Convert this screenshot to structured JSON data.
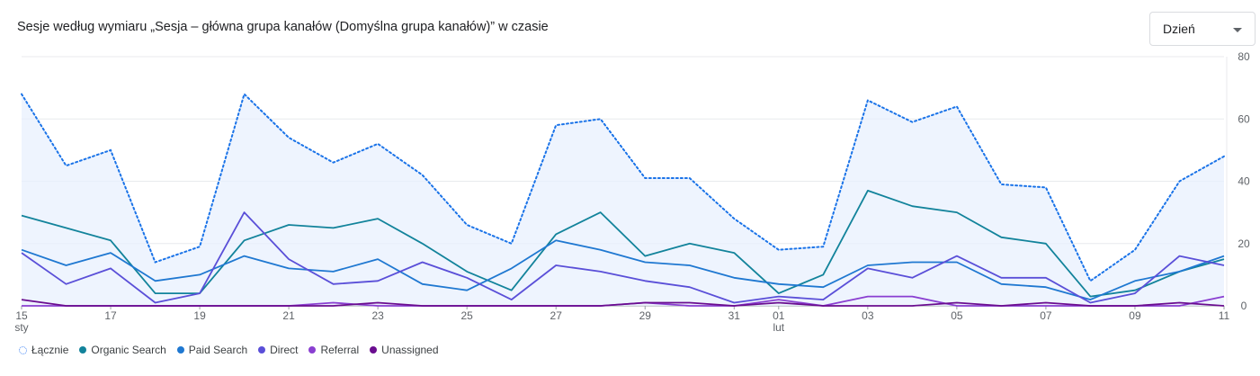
{
  "header": {
    "title": "Sesje według wymiaru „Sesja – główna grupa kanałów (Domyślna grupa kanałów)” w czasie",
    "period_select": "Dzień"
  },
  "chart_data": {
    "type": "line",
    "x": [
      "15 sty",
      "16 sty",
      "17 sty",
      "18 sty",
      "19 sty",
      "20 sty",
      "21 sty",
      "22 sty",
      "23 sty",
      "24 sty",
      "25 sty",
      "26 sty",
      "27 sty",
      "28 sty",
      "29 sty",
      "30 sty",
      "31 sty",
      "01 lut",
      "02 lut",
      "03 lut",
      "04 lut",
      "05 lut",
      "06 lut",
      "07 lut",
      "08 lut",
      "09 lut",
      "10 lut",
      "11 lut"
    ],
    "x_tick_labels": [
      "15",
      "17",
      "19",
      "21",
      "23",
      "25",
      "27",
      "29",
      "31",
      "01",
      "03",
      "05",
      "07",
      "09",
      "11"
    ],
    "x_month_labels": [
      {
        "at": "15",
        "label": "sty"
      },
      {
        "at": "01",
        "label": "lut"
      }
    ],
    "ylim": [
      0,
      80
    ],
    "y_ticks": [
      0,
      20,
      40,
      60,
      80
    ],
    "y_axis_side": "right",
    "grid": true,
    "legend_position": "bottom-left",
    "series": [
      {
        "name": "Łącznie",
        "style": "dotted-area",
        "color": "#1a73e8",
        "values": [
          68,
          45,
          50,
          14,
          19,
          68,
          54,
          46,
          52,
          42,
          26,
          20,
          58,
          60,
          41,
          41,
          28,
          18,
          19,
          66,
          59,
          64,
          39,
          38,
          8,
          18,
          40,
          48
        ]
      },
      {
        "name": "Organic Search",
        "color": "#12839b",
        "values": [
          29,
          25,
          21,
          4,
          4,
          21,
          26,
          25,
          28,
          20,
          11,
          5,
          23,
          30,
          16,
          20,
          17,
          4,
          10,
          37,
          32,
          30,
          22,
          20,
          3,
          5,
          11,
          15
        ]
      },
      {
        "name": "Paid Search",
        "color": "#1f78d1",
        "values": [
          18,
          13,
          17,
          8,
          10,
          16,
          12,
          11,
          15,
          7,
          5,
          12,
          21,
          18,
          14,
          13,
          9,
          7,
          6,
          13,
          14,
          14,
          7,
          6,
          2,
          8,
          11,
          16
        ]
      },
      {
        "name": "Direct",
        "color": "#5a4fd8",
        "values": [
          17,
          7,
          12,
          1,
          4,
          30,
          15,
          7,
          8,
          14,
          9,
          2,
          13,
          11,
          8,
          6,
          1,
          3,
          2,
          12,
          9,
          16,
          9,
          9,
          1,
          4,
          16,
          13
        ]
      },
      {
        "name": "Referral",
        "color": "#8a3fd1",
        "values": [
          0,
          0,
          0,
          0,
          0,
          0,
          0,
          1,
          0,
          0,
          0,
          0,
          0,
          0,
          1,
          0,
          0,
          2,
          0,
          3,
          3,
          0,
          0,
          0,
          0,
          0,
          0,
          3
        ]
      },
      {
        "name": "Unassigned",
        "color": "#6a0d8f",
        "values": [
          2,
          0,
          0,
          0,
          0,
          0,
          0,
          0,
          1,
          0,
          0,
          0,
          0,
          0,
          1,
          1,
          0,
          1,
          0,
          0,
          0,
          1,
          0,
          1,
          0,
          0,
          1,
          0
        ]
      }
    ]
  }
}
